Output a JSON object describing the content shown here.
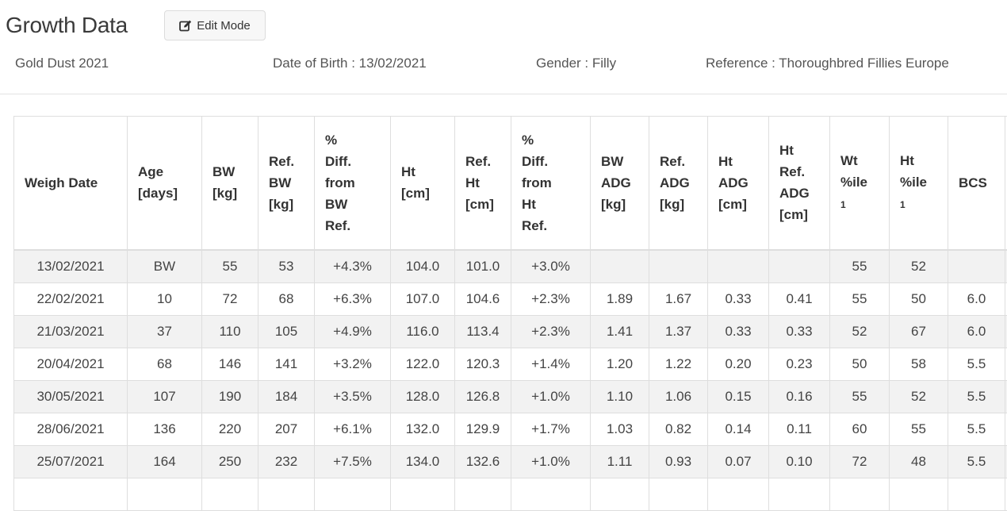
{
  "header": {
    "title": "Growth Data",
    "edit_button": "Edit Mode",
    "horse_name": "Gold Dust 2021",
    "dob": "Date of Birth : 13/02/2021",
    "gender": "Gender : Filly",
    "reference": "Reference : Thoroughbred Fillies Europe"
  },
  "table": {
    "headers": [
      [
        "Weigh Date"
      ],
      [
        "Age",
        "[days]"
      ],
      [
        "BW",
        "[kg]"
      ],
      [
        "Ref.",
        "BW",
        "[kg]"
      ],
      [
        "%",
        "Diff.",
        "from",
        "BW",
        "Ref."
      ],
      [
        "Ht",
        "[cm]"
      ],
      [
        "Ref.",
        "Ht",
        "[cm]"
      ],
      [
        "%",
        "Diff.",
        "from",
        "Ht",
        "Ref."
      ],
      [
        "BW",
        "ADG",
        "[kg]"
      ],
      [
        "Ref.",
        "ADG",
        "[kg]"
      ],
      [
        "Ht",
        "ADG",
        "[cm]"
      ],
      [
        "Ht",
        "Ref.",
        "ADG",
        "[cm]"
      ],
      [
        "Wt",
        "%ile",
        "1"
      ],
      [
        "Ht",
        "%ile",
        "1"
      ],
      [
        "BCS"
      ],
      [
        ""
      ]
    ],
    "rows": [
      [
        "13/02/2021",
        "BW",
        "55",
        "53",
        "+4.3%",
        "104.0",
        "101.0",
        "+3.0%",
        "",
        "",
        "",
        "",
        "55",
        "52",
        "",
        ""
      ],
      [
        "22/02/2021",
        "10",
        "72",
        "68",
        "+6.3%",
        "107.0",
        "104.6",
        "+2.3%",
        "1.89",
        "1.67",
        "0.33",
        "0.41",
        "55",
        "50",
        "6.0",
        ""
      ],
      [
        "21/03/2021",
        "37",
        "110",
        "105",
        "+4.9%",
        "116.0",
        "113.4",
        "+2.3%",
        "1.41",
        "1.37",
        "0.33",
        "0.33",
        "52",
        "67",
        "6.0",
        ""
      ],
      [
        "20/04/2021",
        "68",
        "146",
        "141",
        "+3.2%",
        "122.0",
        "120.3",
        "+1.4%",
        "1.20",
        "1.22",
        "0.20",
        "0.23",
        "50",
        "58",
        "5.5",
        ""
      ],
      [
        "30/05/2021",
        "107",
        "190",
        "184",
        "+3.5%",
        "128.0",
        "126.8",
        "+1.0%",
        "1.10",
        "1.06",
        "0.15",
        "0.16",
        "55",
        "52",
        "5.5",
        ""
      ],
      [
        "28/06/2021",
        "136",
        "220",
        "207",
        "+6.1%",
        "132.0",
        "129.9",
        "+1.7%",
        "1.03",
        "0.82",
        "0.14",
        "0.11",
        "60",
        "55",
        "5.5",
        ""
      ],
      [
        "25/07/2021",
        "164",
        "250",
        "232",
        "+7.5%",
        "134.0",
        "132.6",
        "+1.0%",
        "1.11",
        "0.93",
        "0.07",
        "0.10",
        "72",
        "48",
        "5.5",
        ""
      ],
      [
        "",
        "",
        "",
        "",
        "",
        "",
        "",
        "",
        "",
        "",
        "",
        "",
        "",
        "",
        "",
        ""
      ]
    ]
  }
}
